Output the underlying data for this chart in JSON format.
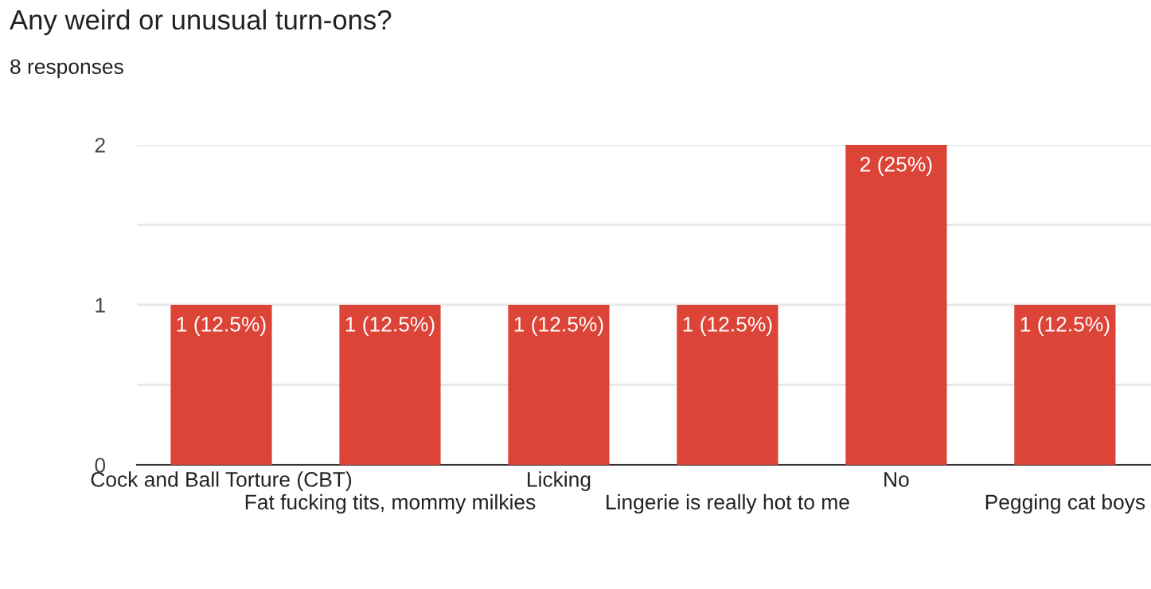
{
  "chart_data": {
    "type": "bar",
    "title": "Any weird or unusual turn-ons?",
    "subtitle": "8 responses",
    "categories": [
      "Cock and Ball Torture (CBT)",
      "Fat fucking tits, mommy milkies",
      "Licking",
      "Lingerie is really hot to me",
      "No",
      "Pegging cat boys"
    ],
    "values": [
      1,
      1,
      1,
      1,
      2,
      1
    ],
    "value_labels": [
      "1 (12.5%)",
      "1 (12.5%)",
      "1 (12.5%)",
      "1 (12.5%)",
      "2 (25%)",
      "1 (12.5%)"
    ],
    "color": "#db4437",
    "ylim": [
      0,
      2
    ],
    "yticks": [
      0,
      {
        "value": 0.5,
        "label": null
      },
      1,
      {
        "value": 1.5,
        "label": null
      },
      2
    ],
    "grid": "y",
    "legend": false
  }
}
